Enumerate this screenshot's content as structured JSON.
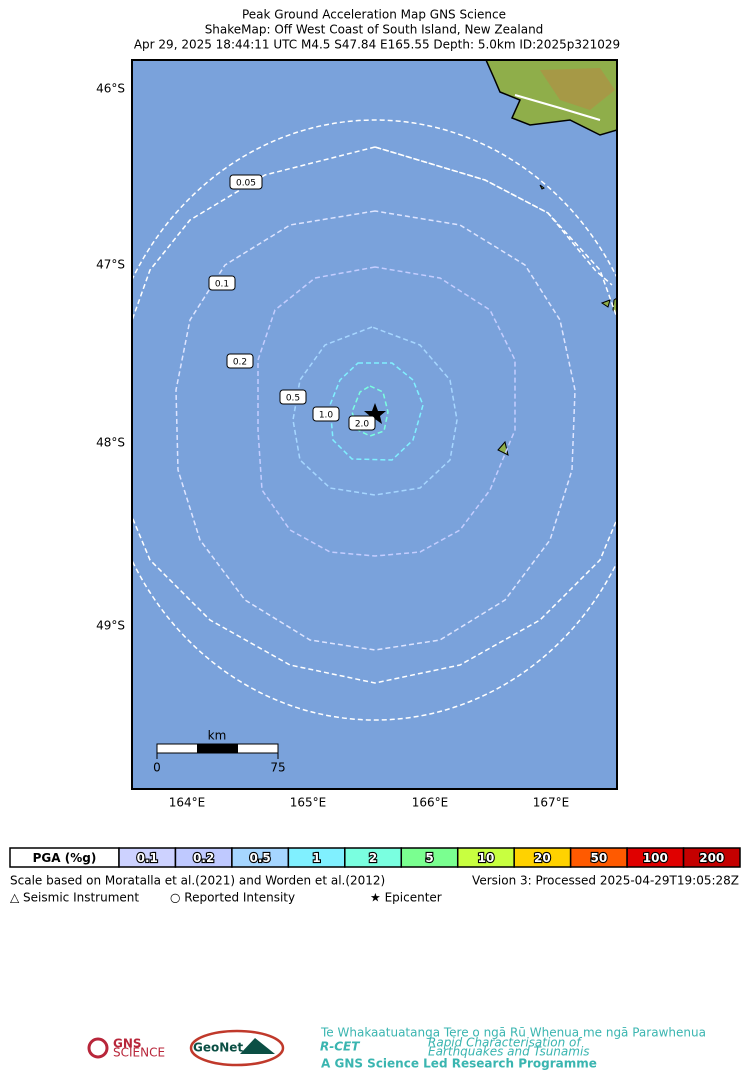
{
  "header": {
    "title": [
      "Peak Ground Acceleration Map GNS Science",
      "ShakeMap: Off West Coast of South Island, New Zealand",
      "Apr 29, 2025 18:44:11 UTC M4.5 S47.84 E165.55 Depth: 5.0km ID:2025p321029"
    ]
  },
  "map": {
    "lat_labels": [
      "46°S",
      "47°S",
      "48°S",
      "49°S"
    ],
    "lon_labels": [
      "164°E",
      "165°E",
      "166°E",
      "167°E"
    ],
    "contour_labels": [
      "0.05",
      "0.1",
      "0.2",
      "0.5",
      "1.0",
      "2.0"
    ],
    "scale_bar": {
      "unit": "km",
      "start": "0",
      "end": "75"
    }
  },
  "legend": {
    "header": "PGA (%g)",
    "bins": [
      {
        "label": "0.1",
        "color": "#cdd2ff"
      },
      {
        "label": "0.2",
        "color": "#bfc9ff"
      },
      {
        "label": "0.5",
        "color": "#a6d6ff"
      },
      {
        "label": "1",
        "color": "#80f0ff"
      },
      {
        "label": "2",
        "color": "#7affe0"
      },
      {
        "label": "5",
        "color": "#7aff90"
      },
      {
        "label": "10",
        "color": "#c8ff40"
      },
      {
        "label": "20",
        "color": "#ffd200"
      },
      {
        "label": "50",
        "color": "#ff5a00"
      },
      {
        "label": "100",
        "color": "#e00000"
      },
      {
        "label": "200",
        "color": "#c40000"
      }
    ]
  },
  "footer": {
    "scale_note": "Scale based on Moratalla et al.(2021) and Worden et al.(2012)",
    "version": "Version 3: Processed 2025-04-29T19:05:28Z",
    "symbols": [
      "△  Seismic Instrument",
      "○  Reported Intensity",
      "★ Epicenter"
    ]
  },
  "logos": {
    "gns": "GNS",
    "gns_sub": "SCIENCE",
    "geonet": "GeoNet",
    "rcet": "R-CET",
    "rcet_maori": "Te Whakaatuatanga Tere o ngā Rū Whenua me ngā Parawhenua",
    "rcet_line1": "Rapid Characterisation of",
    "rcet_line2": "Earthquakes and Tsunamis",
    "rcet_sub": "A GNS Science Led Research Programme"
  }
}
